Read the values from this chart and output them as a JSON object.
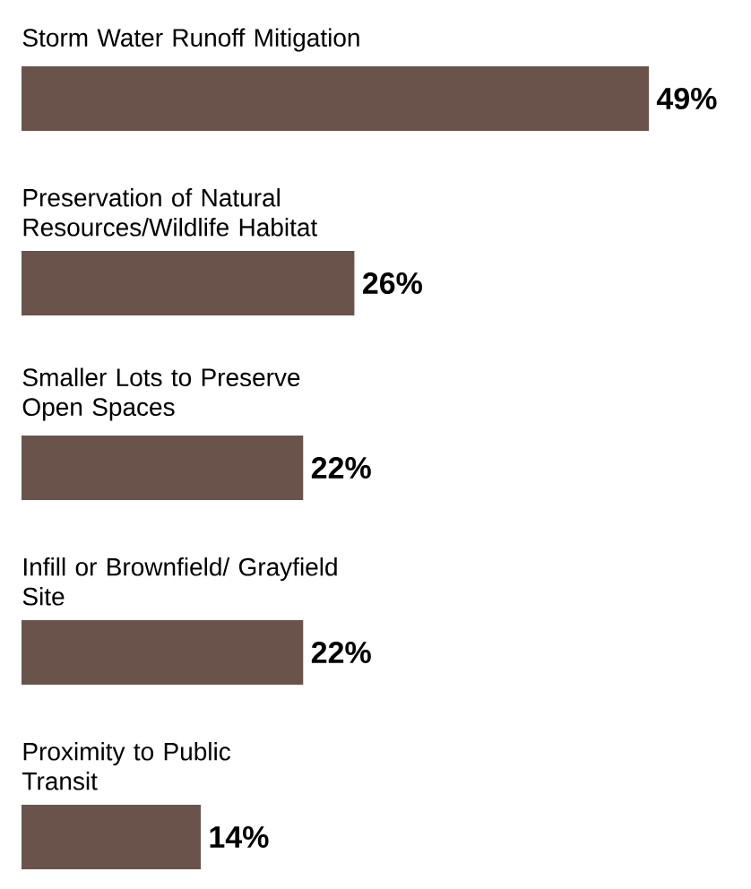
{
  "chart_data": {
    "type": "bar",
    "orientation": "horizontal",
    "categories": [
      "Storm Water Runoff Mitigation",
      "Preservation of Natural Resources/Wildlife Habitat",
      "Smaller Lots to Preserve Open Spaces",
      "Infill or Brownfield/ Grayfield Site",
      "Proximity to Public Transit"
    ],
    "values": [
      49,
      26,
      22,
      22,
      14
    ],
    "value_labels": [
      "49%",
      "26%",
      "22%",
      "22%",
      "14%"
    ],
    "color": "#6a534b"
  }
}
